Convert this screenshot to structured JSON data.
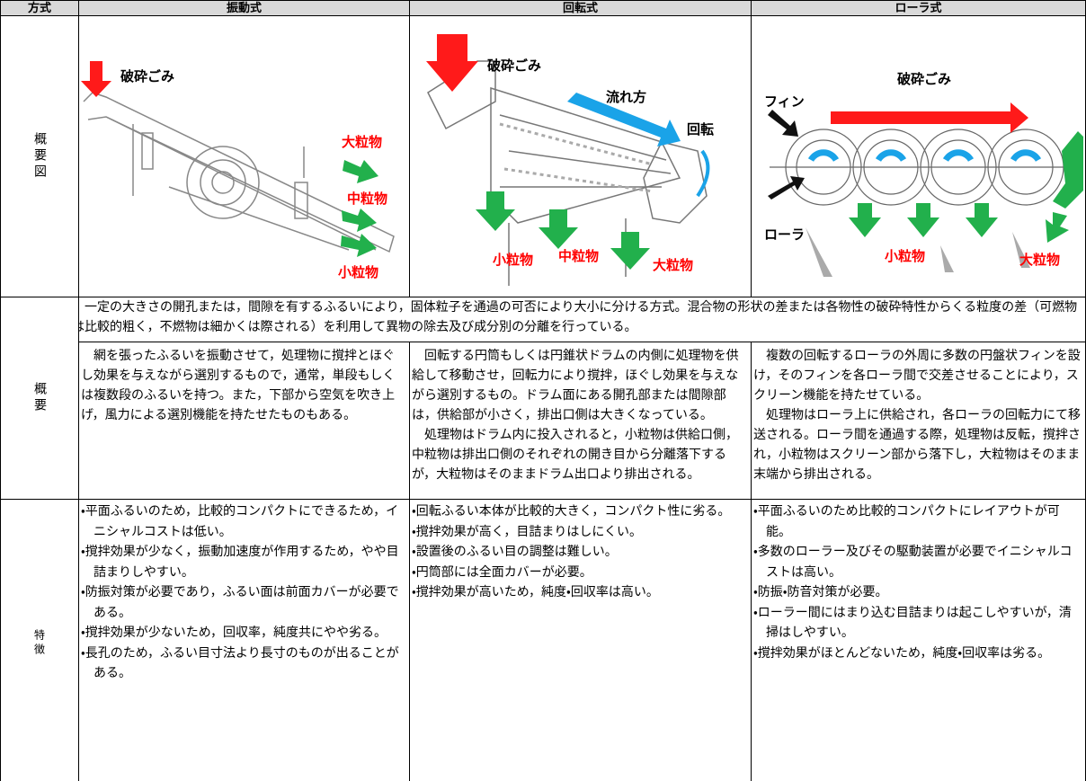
{
  "table": {
    "header": [
      "方式",
      "振動式",
      "回転式",
      "ローラ式"
    ],
    "diagram_row": {
      "label": "概要図",
      "diagrams": [
        {
          "feed": "破砕ごみ",
          "large": "大粒物",
          "medium": "中粒物",
          "small": "小粒物"
        },
        {
          "feed": "破砕ごみ",
          "flow": "流れ方",
          "rotation": "回転",
          "small": "小粒物",
          "medium": "中粒物",
          "large": "大粒物"
        },
        {
          "feed": "破砕ごみ",
          "fin": "フィン",
          "roller": "ローラ",
          "small": "小粒物",
          "large": "大粒物"
        }
      ]
    },
    "overview": {
      "label": "概要",
      "common": "一定の大きさの開孔または，間隙を有するふるいにより，固体粒子を通過の可否により大小に分ける方式。混合物の形状の差または各物性の破砕特性からくる粒度の差（可燃物は比較的粗く，不燃物は細かくは際される）を利用して異物の除去及び成分別の分離を行っている。",
      "columns": [
        [
          "網を張ったふるいを振動させて，処理物に撹拌とほぐし効果を与えながら選別するもので，通常，単段もしくは複数段のふるいを持つ。また，下部から空気を吹き上げ，風力による選別機能を持たせたものもある。"
        ],
        [
          "回転する円筒もしくは円錐状ドラムの内側に処理物を供給して移動させ，回転力により撹拌，ほぐし効果を与えながら選別するもの。ドラム面にある開孔部または間隙部は，供給部が小さく，排出口側は大きくなっている。",
          "処理物はドラム内に投入されると，小粒物は供給口側，中粒物は排出口側のそれぞれの開き目から分離落下するが，大粒物はそのままドラム出口より排出される。"
        ],
        [
          "複数の回転するローラの外周に多数の円盤状フィンを設け，そのフィンを各ローラ間で交差させることにより，スクリーン機能を持たせている。",
          "処理物はローラ上に供給され，各ローラの回転力にて移送される。ローラ間を通過する際，処理物は反転，撹拌され，小粒物はスクリーン部から落下し，大粒物はそのまま末端から排出される。"
        ]
      ]
    },
    "features": {
      "label": "特徴",
      "columns": [
        [
          "・平面ふるいのため，比較的コンパクトにできるため，イニシャルコストは低い。",
          "・撹拌効果が少なく，振動加速度が作用するため，やや目詰まりしやすい。",
          "・防振対策が必要であり，ふるい面は前面カバーが必要である。",
          "・撹拌効果が少ないため，回収率，純度共にやや劣る。",
          "・長孔のため，ふるい目寸法より長寸のものが出ることがある。"
        ],
        [
          "・回転ふるい本体が比較的大きく，コンパクト性に劣る。",
          "・撹拌効果が高く，目詰まりはしにくい。",
          "・設置後のふるい目の調整は難しい。",
          "・円筒部には全面カバーが必要。",
          "・撹拌効果が高いため，純度・回収率は高い。"
        ],
        [
          "・平面ふるいのため比較的コンパクトにレイアウトが可能。",
          "・多数のローラー及びその駆動装置が必要でイニシャルコストは高い。",
          "・防振・防音対策が必要。",
          "・ローラー間にはまり込む目詰まりは起こしやすいが，清掃はしやすい。",
          "・撹拌効果がほとんどないため，純度・回収率は劣る。"
        ]
      ]
    }
  }
}
